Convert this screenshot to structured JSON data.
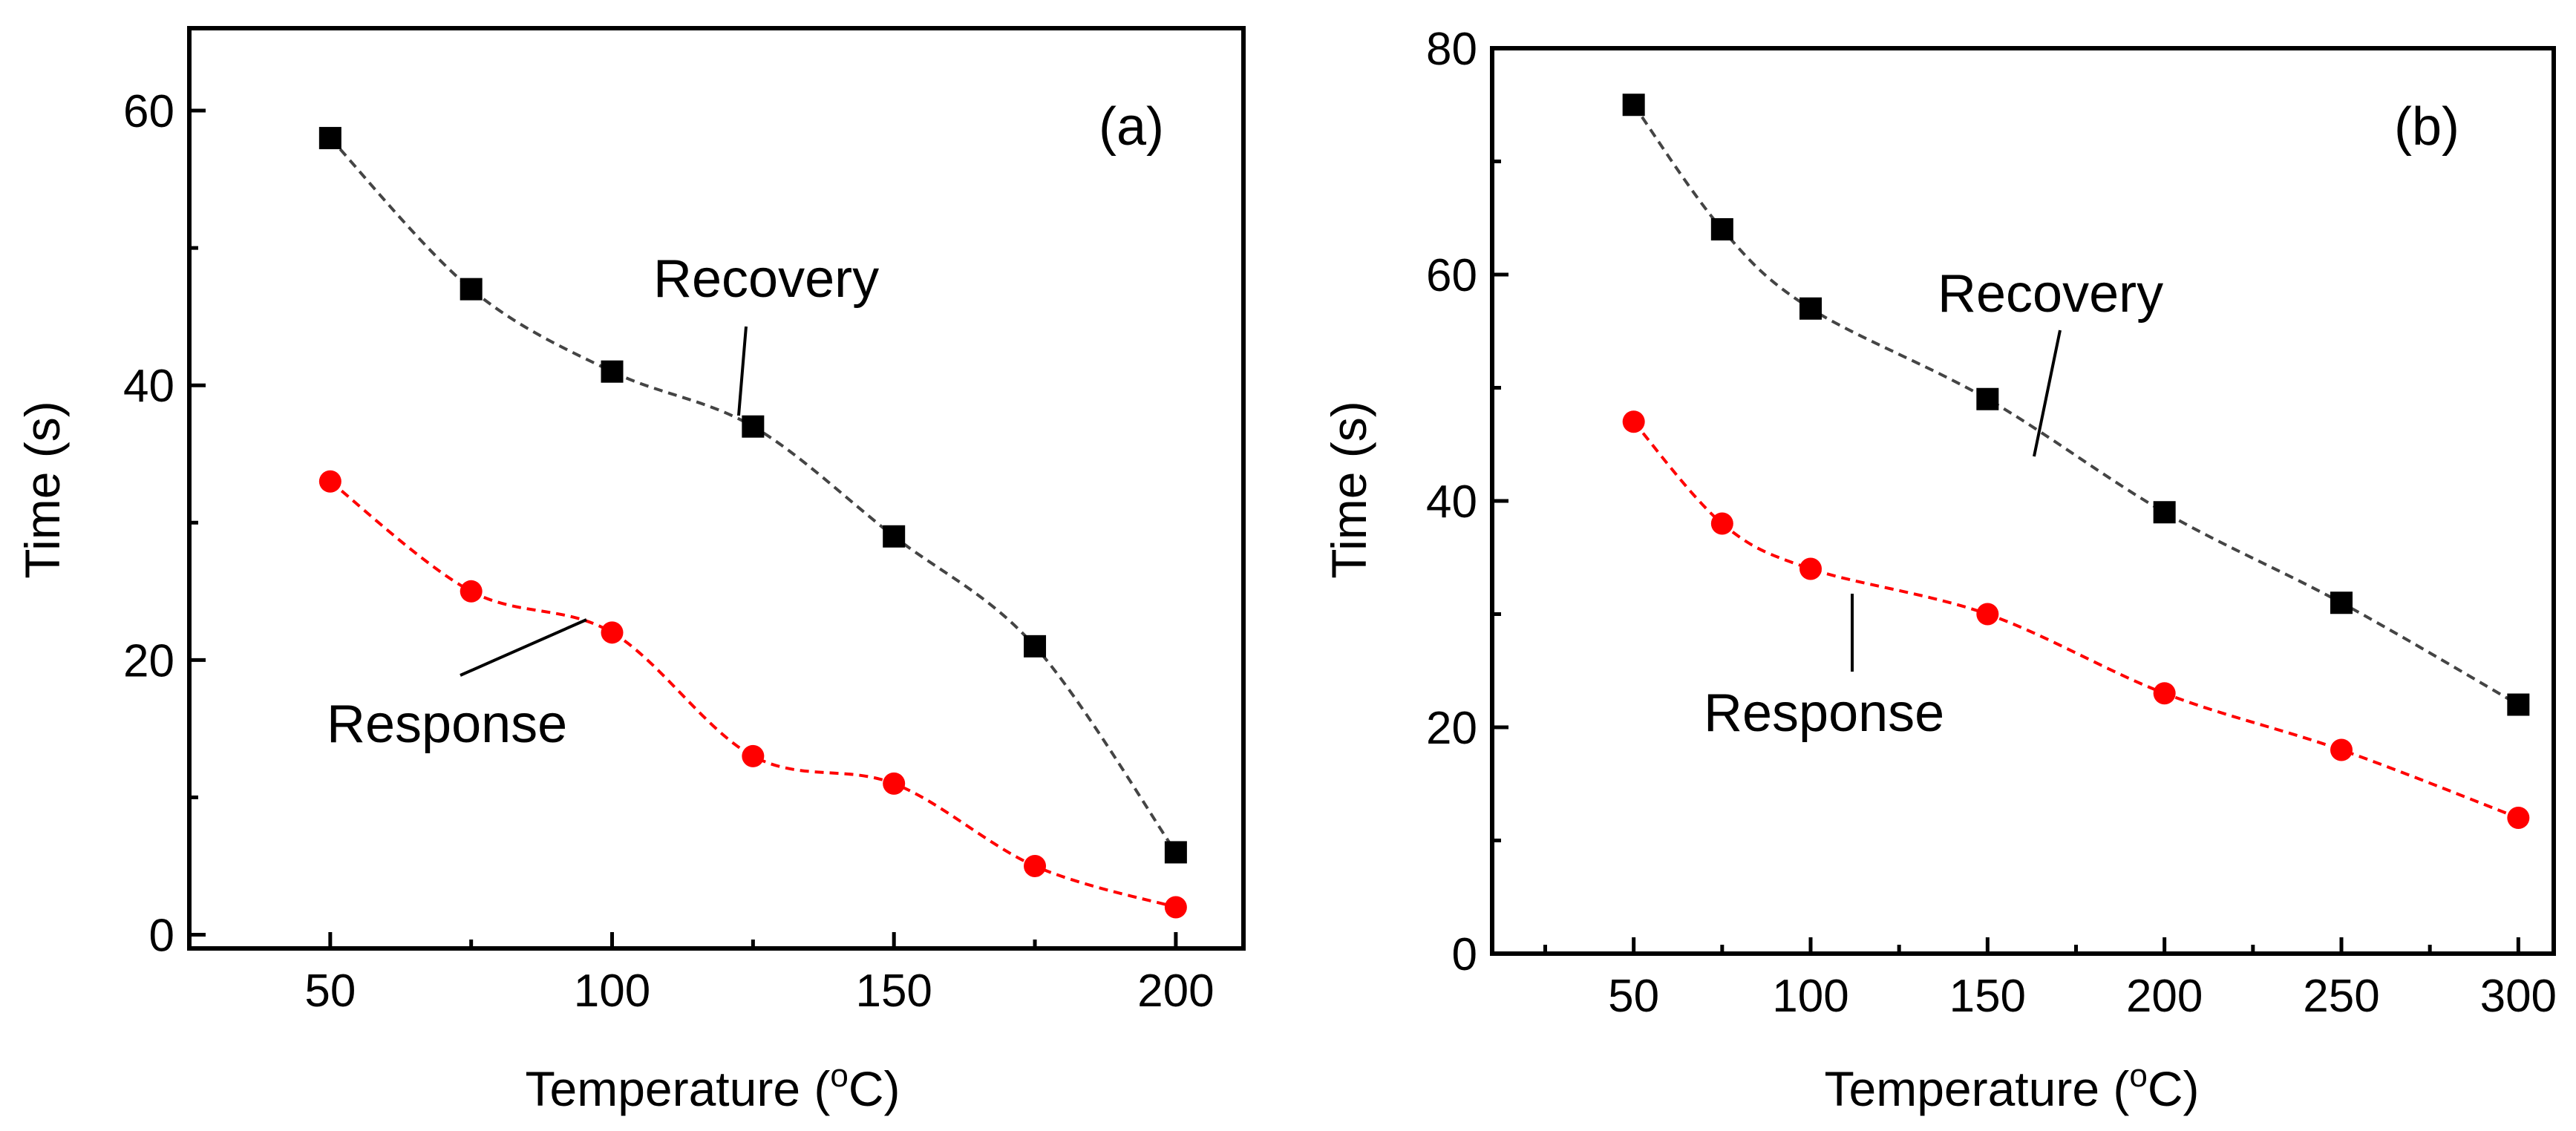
{
  "chart_data": [
    {
      "type": "line",
      "panel_label": "(a)",
      "xlabel_main": "Temperature (",
      "xlabel_sup": "o",
      "xlabel_end": "C)",
      "ylabel": "Time (s)",
      "xlim": [
        25,
        212
      ],
      "ylim": [
        -1,
        66
      ],
      "xticks": [
        50,
        100,
        150,
        200
      ],
      "yticks": [
        0,
        20,
        40,
        60
      ],
      "series": [
        {
          "name": "Recovery",
          "color": "#000000",
          "marker": "square",
          "x": [
            50,
            75,
            100,
            125,
            150,
            175,
            200
          ],
          "y": [
            58,
            47,
            41,
            37,
            29,
            21,
            6
          ]
        },
        {
          "name": "Response",
          "color": "#ff0000",
          "marker": "circle",
          "x": [
            50,
            75,
            100,
            125,
            150,
            175,
            200
          ],
          "y": [
            33,
            25,
            22,
            13,
            11,
            5,
            2
          ]
        }
      ]
    },
    {
      "type": "line",
      "panel_label": "(b)",
      "xlabel_main": "Temperature (",
      "xlabel_sup": "o",
      "xlabel_end": "C)",
      "ylabel": "Time (s)",
      "xlim": [
        10,
        310
      ],
      "ylim": [
        0,
        80
      ],
      "xticks": [
        50,
        100,
        150,
        200,
        250,
        300
      ],
      "xtick_labels": [
        "50",
        "100",
        "150",
        "200",
        "250",
        "300"
      ],
      "yticks": [
        0,
        20,
        40,
        60,
        80
      ],
      "series": [
        {
          "name": "Recovery",
          "color": "#000000",
          "marker": "square",
          "x": [
            50,
            75,
            100,
            150,
            200,
            250,
            300
          ],
          "y": [
            75,
            64,
            57,
            49,
            39,
            31,
            22
          ]
        },
        {
          "name": "Response",
          "color": "#ff0000",
          "marker": "circle",
          "x": [
            50,
            75,
            100,
            150,
            200,
            250,
            300
          ],
          "y": [
            47,
            38,
            34,
            30,
            23,
            18,
            12
          ]
        }
      ]
    }
  ]
}
